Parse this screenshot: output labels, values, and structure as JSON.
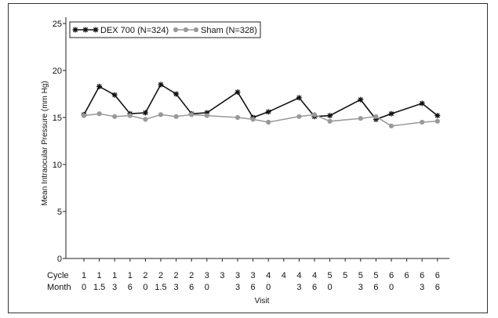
{
  "chart_data": {
    "type": "line",
    "xlabel": "Visit",
    "ylabel": "Mean Intraocular Pressure (mm Hg)",
    "ylim": [
      0,
      25
    ],
    "y_ticks": [
      0,
      5,
      10,
      15,
      20,
      25
    ],
    "row_labels": {
      "cycle": "Cycle",
      "month": "Month"
    },
    "visits": [
      {
        "cycle": "1",
        "month": "0"
      },
      {
        "cycle": "1",
        "month": "1.5"
      },
      {
        "cycle": "1",
        "month": "3"
      },
      {
        "cycle": "1",
        "month": "6"
      },
      {
        "cycle": "2",
        "month": "0"
      },
      {
        "cycle": "2",
        "month": "1.5"
      },
      {
        "cycle": "2",
        "month": "3"
      },
      {
        "cycle": "2",
        "month": "6"
      },
      {
        "cycle": "3",
        "month": "0"
      },
      {
        "cycle": "3",
        "month": ""
      },
      {
        "cycle": "3",
        "month": "3"
      },
      {
        "cycle": "3",
        "month": "6"
      },
      {
        "cycle": "4",
        "month": "0"
      },
      {
        "cycle": "4",
        "month": ""
      },
      {
        "cycle": "4",
        "month": "3"
      },
      {
        "cycle": "4",
        "month": "6"
      },
      {
        "cycle": "5",
        "month": "0"
      },
      {
        "cycle": "5",
        "month": ""
      },
      {
        "cycle": "5",
        "month": "3"
      },
      {
        "cycle": "5",
        "month": "6"
      },
      {
        "cycle": "6",
        "month": "0"
      },
      {
        "cycle": "6",
        "month": ""
      },
      {
        "cycle": "6",
        "month": "3"
      },
      {
        "cycle": "6",
        "month": "6"
      }
    ],
    "legend_position": "top-left",
    "series": [
      {
        "name": "DEX 700 (N=324)",
        "color": "#111111",
        "marker": "asterisk",
        "points": [
          {
            "i": 0,
            "y": 15.3
          },
          {
            "i": 1,
            "y": 18.3
          },
          {
            "i": 2,
            "y": 17.4
          },
          {
            "i": 3,
            "y": 15.4
          },
          {
            "i": 4,
            "y": 15.5
          },
          {
            "i": 5,
            "y": 18.5
          },
          {
            "i": 6,
            "y": 17.5
          },
          {
            "i": 7,
            "y": 15.4
          },
          {
            "i": 8,
            "y": 15.5
          },
          {
            "i": 10,
            "y": 17.7
          },
          {
            "i": 11,
            "y": 15.0
          },
          {
            "i": 12,
            "y": 15.6
          },
          {
            "i": 14,
            "y": 17.1
          },
          {
            "i": 15,
            "y": 15.1
          },
          {
            "i": 16,
            "y": 15.2
          },
          {
            "i": 18,
            "y": 16.9
          },
          {
            "i": 19,
            "y": 14.8
          },
          {
            "i": 20,
            "y": 15.4
          },
          {
            "i": 22,
            "y": 16.5
          },
          {
            "i": 23,
            "y": 15.2
          }
        ]
      },
      {
        "name": "Sham (N=328)",
        "color": "#999999",
        "marker": "circle",
        "points": [
          {
            "i": 0,
            "y": 15.2
          },
          {
            "i": 1,
            "y": 15.4
          },
          {
            "i": 2,
            "y": 15.1
          },
          {
            "i": 3,
            "y": 15.2
          },
          {
            "i": 4,
            "y": 14.8
          },
          {
            "i": 5,
            "y": 15.3
          },
          {
            "i": 6,
            "y": 15.1
          },
          {
            "i": 7,
            "y": 15.3
          },
          {
            "i": 8,
            "y": 15.2
          },
          {
            "i": 10,
            "y": 15.0
          },
          {
            "i": 11,
            "y": 14.8
          },
          {
            "i": 12,
            "y": 14.5
          },
          {
            "i": 14,
            "y": 15.1
          },
          {
            "i": 15,
            "y": 15.3
          },
          {
            "i": 16,
            "y": 14.6
          },
          {
            "i": 18,
            "y": 14.9
          },
          {
            "i": 19,
            "y": 15.1
          },
          {
            "i": 20,
            "y": 14.1
          },
          {
            "i": 22,
            "y": 14.5
          },
          {
            "i": 23,
            "y": 14.6
          }
        ]
      }
    ]
  }
}
